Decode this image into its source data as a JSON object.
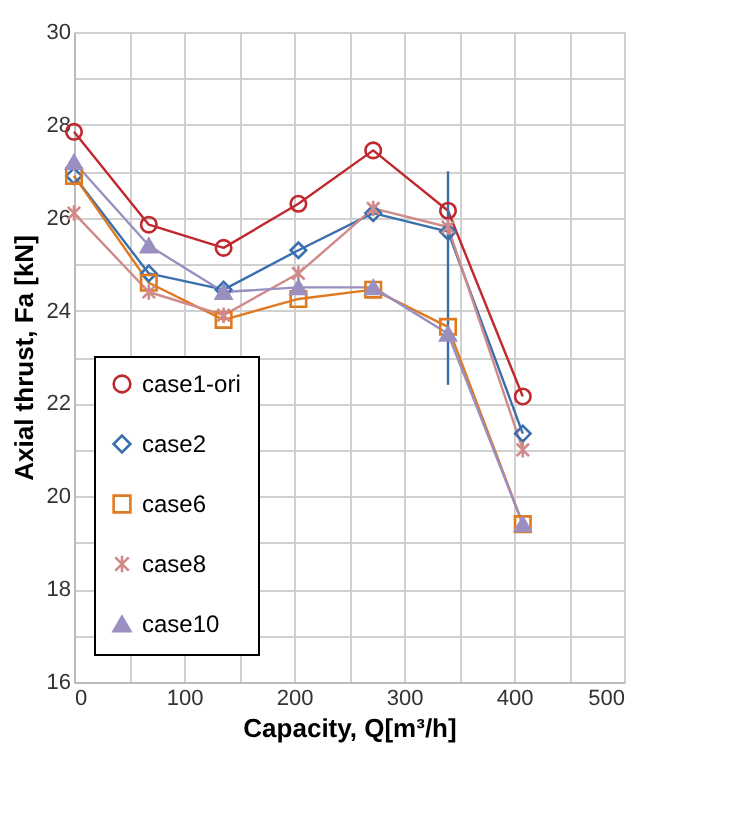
{
  "chart_data": {
    "type": "line",
    "xlabel": "Capacity, Q[m³/h]",
    "ylabel": "Axial thrust, Fa [kN]",
    "x": [
      0,
      68,
      136,
      204,
      272,
      340,
      408
    ],
    "xlim": [
      0,
      500
    ],
    "ylim": [
      16,
      30
    ],
    "xticks": [
      0,
      {
        "value": 50,
        "label": null
      },
      100,
      {
        "value": 150,
        "label": null
      },
      200,
      {
        "value": 250,
        "label": null
      },
      300,
      {
        "value": 350,
        "label": null
      },
      400,
      {
        "value": 450,
        "label": null
      },
      500
    ],
    "yticks": [
      16,
      {
        "value": 17,
        "label": null
      },
      18,
      {
        "value": 19,
        "label": null
      },
      20,
      {
        "value": 21,
        "label": null
      },
      22,
      {
        "value": 23,
        "label": null
      },
      24,
      {
        "value": 25,
        "label": null
      },
      26,
      {
        "value": 27,
        "label": null
      },
      28,
      {
        "value": 29,
        "label": null
      },
      30
    ],
    "grid": true,
    "legend": "bottom left",
    "series": [
      {
        "name": "case1-ori",
        "color": "#c0282d",
        "marker": "circle",
        "values": [
          27.85,
          25.85,
          25.35,
          26.3,
          27.45,
          26.15,
          22.15
        ]
      },
      {
        "name": "case2",
        "color": "#3a6fae",
        "marker": "diamond",
        "values": [
          26.9,
          24.8,
          24.45,
          25.3,
          26.1,
          25.7,
          21.35
        ]
      },
      {
        "name": "case6",
        "color": "#e07a20",
        "marker": "square",
        "values": [
          26.9,
          24.6,
          23.8,
          24.25,
          24.45,
          23.65,
          19.4
        ]
      },
      {
        "name": "case8",
        "color": "#d08a8a",
        "marker": "cross",
        "values": [
          26.1,
          24.4,
          23.9,
          24.8,
          26.2,
          25.8,
          21.0
        ]
      },
      {
        "name": "case10",
        "color": "#9a8fc0",
        "marker": "triangle",
        "values": [
          27.2,
          25.4,
          24.4,
          24.5,
          24.5,
          23.5,
          19.4
        ]
      },
      {
        "color": "#3a6fae",
        "marker": "none",
        "x": [
          340,
          340
        ],
        "values": [
          22.4,
          27.0
        ]
      }
    ]
  }
}
